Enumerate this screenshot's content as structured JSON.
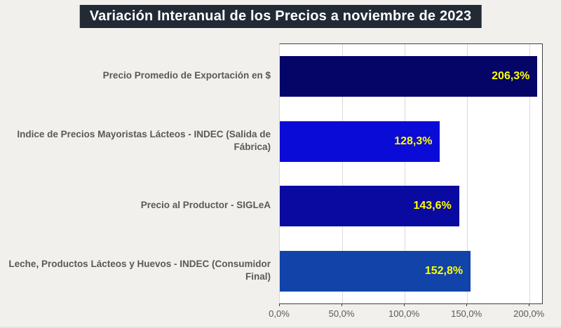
{
  "title": "Variación Interanual de los Precios a noviembre de 2023",
  "chart_data": {
    "type": "bar",
    "orientation": "horizontal",
    "title": "Variación Interanual de los Precios a noviembre de 2023",
    "categories": [
      "Precio Promedio de Exportación en $",
      "Indice de Precios Mayoristas Lácteos - INDEC (Salida de Fábrica)",
      "Precio al Productor - SIGLeA",
      "Leche, Productos Lácteos y Huevos - INDEC (Consumidor Final)"
    ],
    "values": [
      206.3,
      128.3,
      143.6,
      152.8
    ],
    "value_labels": [
      "206,3%",
      "128,3%",
      "143,6%",
      "152,8%"
    ],
    "bar_colors": [
      "#050568",
      "#0B0BD8",
      "#0A0AA0",
      "#1143A8"
    ],
    "xlabel": "",
    "ylabel": "",
    "xlim": [
      0,
      210
    ],
    "x_ticks": [
      {
        "value": 0,
        "label": "0,0%"
      },
      {
        "value": 50,
        "label": "50,0%"
      },
      {
        "value": 100,
        "label": "100,0%"
      },
      {
        "value": 150,
        "label": "150,0%"
      },
      {
        "value": 200,
        "label": "200,0%"
      }
    ],
    "grid": "vertical-gridlines-on",
    "legend": "none"
  },
  "colors": {
    "page_background": "#F1F0ED",
    "title_background": "#222A35",
    "title_text": "#FFFFFF",
    "plot_background": "#FFFFFF",
    "plot_border": "#404040",
    "gridline": "#D9D9D9",
    "category_text": "#595959",
    "axis_text": "#595959",
    "value_label_text": "#FFFF00"
  }
}
